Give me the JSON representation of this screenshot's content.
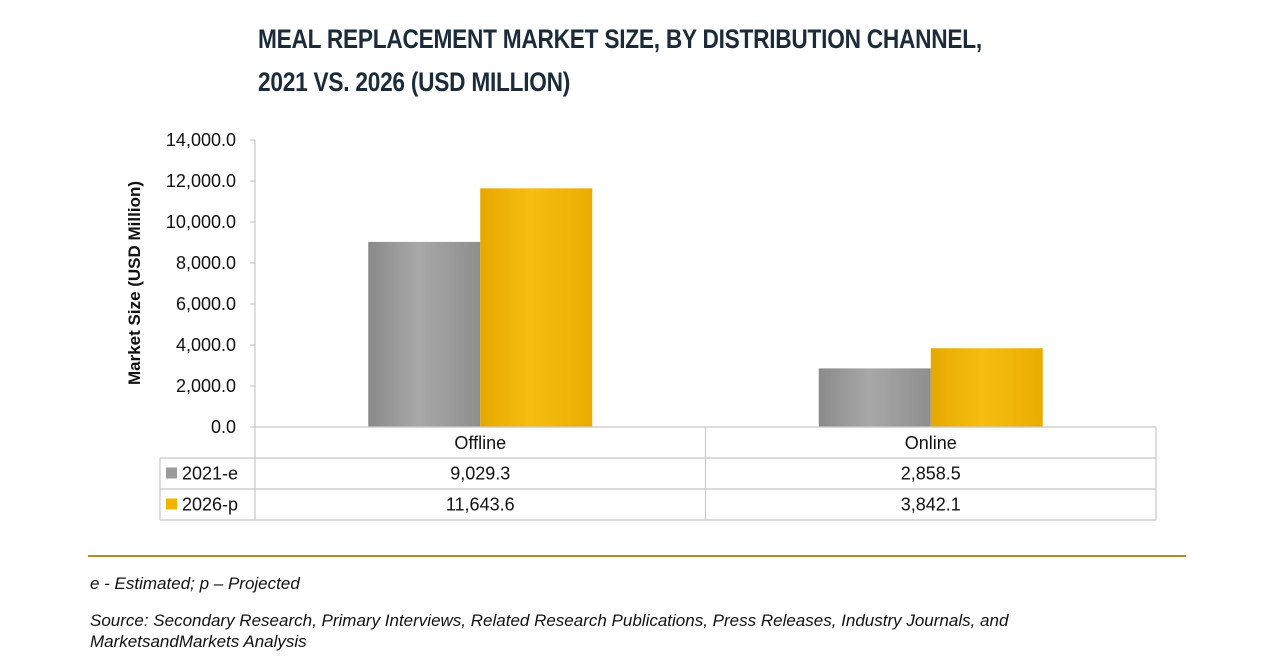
{
  "title_line1": "MEAL REPLACEMENT MARKET SIZE, BY DISTRIBUTION CHANNEL,",
  "title_line2": "2021 VS. 2026 (USD MILLION)",
  "chart_data": {
    "type": "bar",
    "categories": [
      "Offline",
      "Online"
    ],
    "series": [
      {
        "name": "2021-e",
        "color": "#9b9b9b",
        "values": [
          9029.3,
          2858.5
        ],
        "labels": [
          "9,029.3",
          "2,858.5"
        ]
      },
      {
        "name": "2026-p",
        "color": "#f0b400",
        "values": [
          11643.6,
          3842.1
        ],
        "labels": [
          "11,643.6",
          "3,842.1"
        ]
      }
    ],
    "ylabel": "Market Size (USD Million)",
    "xlabel": "",
    "ylim": [
      0,
      14000
    ],
    "yticks": [
      0,
      2000,
      4000,
      6000,
      8000,
      10000,
      12000,
      14000
    ],
    "ytick_labels": [
      "0.0",
      "2,000.0",
      "4,000.0",
      "6,000.0",
      "8,000.0",
      "10,000.0",
      "12,000.0",
      "14,000.0"
    ],
    "grid": false,
    "legend": "data-table"
  },
  "footnote": "e - Estimated; p – Projected",
  "source": "Source: Secondary Research, Primary Interviews, Related Research Publications, Press Releases, Industry Journals, and MarketsandMarkets Analysis"
}
